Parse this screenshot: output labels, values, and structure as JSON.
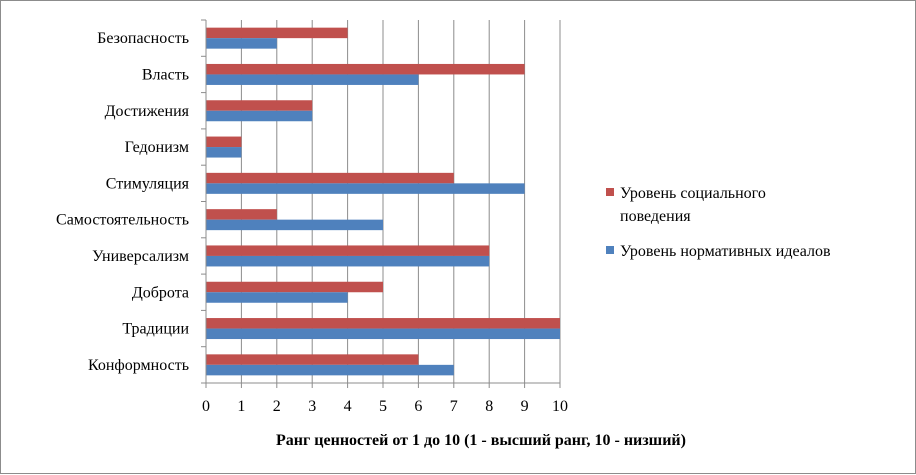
{
  "chart_data": {
    "type": "bar",
    "orientation": "horizontal",
    "categories": [
      "Безопасность",
      "Власть",
      "Достижения",
      "Гедонизм",
      "Стимуляция",
      "Самостоятельность",
      "Универсализм",
      "Доброта",
      "Традиции",
      "Конформность"
    ],
    "series": [
      {
        "name": "Уровень социального поведения",
        "values": [
          4,
          9,
          3,
          1,
          7,
          2,
          8,
          5,
          10,
          6
        ],
        "color": "#c0504d"
      },
      {
        "name": "Уровень нормативных идеалов",
        "values": [
          2,
          6,
          3,
          1,
          9,
          5,
          8,
          4,
          10,
          7
        ],
        "color": "#4f81bd"
      }
    ],
    "xlabel": "Ранг ценностей от 1 до 10 (1 - высший ранг, 10 - низший)",
    "xlim": [
      0,
      10
    ],
    "xticks": [
      "0",
      "1",
      "2",
      "3",
      "4",
      "5",
      "6",
      "7",
      "8",
      "9",
      "10"
    ],
    "grid": "vertical",
    "legend_position": "right",
    "legend_lines": [
      [
        "Уровень социального",
        "поведения"
      ],
      [
        "Уровень нормативных идеалов"
      ]
    ]
  }
}
